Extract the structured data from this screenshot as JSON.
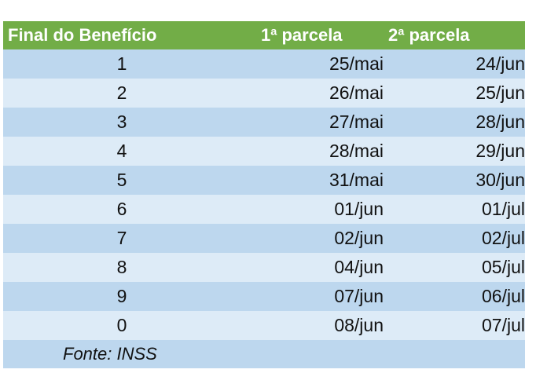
{
  "table": {
    "headers": [
      "Final do Benefício",
      "1ª parcela",
      "2ª parcela"
    ],
    "rows": [
      [
        "1",
        "25/mai",
        "24/jun"
      ],
      [
        "2",
        "26/mai",
        "25/jun"
      ],
      [
        "3",
        "27/mai",
        "28/jun"
      ],
      [
        "4",
        "28/mai",
        "29/jun"
      ],
      [
        "5",
        "31/mai",
        "30/jun"
      ],
      [
        "6",
        "01/jun",
        "01/jul"
      ],
      [
        "7",
        "02/jun",
        "02/jul"
      ],
      [
        "8",
        "04/jun",
        "05/jul"
      ],
      [
        "9",
        "07/jun",
        "06/jul"
      ],
      [
        "0",
        "08/jun",
        "07/jul"
      ]
    ],
    "source": "Fonte: INSS"
  },
  "colors": {
    "header": "#72ad47",
    "row_dark": "#bdd7ee",
    "row_light": "#ddebf7"
  }
}
